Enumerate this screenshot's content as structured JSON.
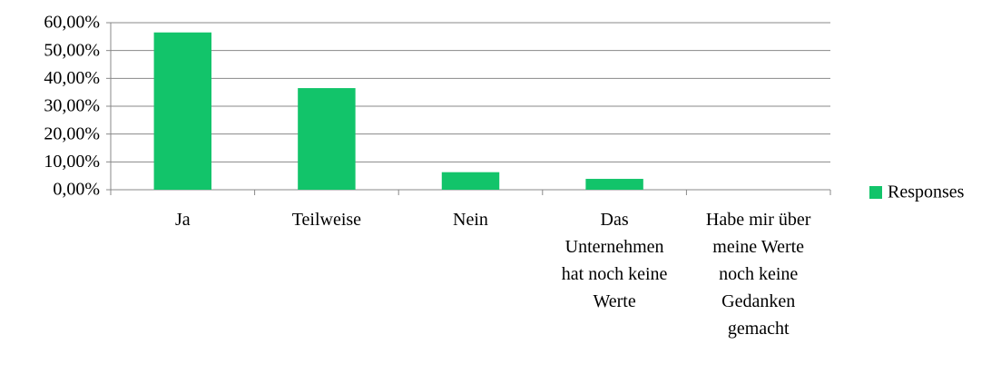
{
  "chart_data": {
    "type": "bar",
    "categories": [
      "Ja",
      "Teilweise",
      "Nein",
      "Das Unternehmen hat noch keine Werte",
      "Habe mir über meine Werte noch keine Gedanken gemacht"
    ],
    "series": [
      {
        "name": "Responses",
        "color": "#12c46a",
        "values": [
          56.5,
          36.5,
          6.3,
          3.9,
          0
        ]
      }
    ],
    "ylim": [
      0,
      60
    ],
    "yticks": [
      {
        "value": 0,
        "label": "0,00%"
      },
      {
        "value": 10,
        "label": "10,00%"
      },
      {
        "value": 20,
        "label": "20,00%"
      },
      {
        "value": 30,
        "label": "30,00%"
      },
      {
        "value": 40,
        "label": "40,00%"
      },
      {
        "value": 50,
        "label": "50,00%"
      },
      {
        "value": 60,
        "label": "60,00%"
      }
    ],
    "grid": true,
    "legend": "right"
  }
}
